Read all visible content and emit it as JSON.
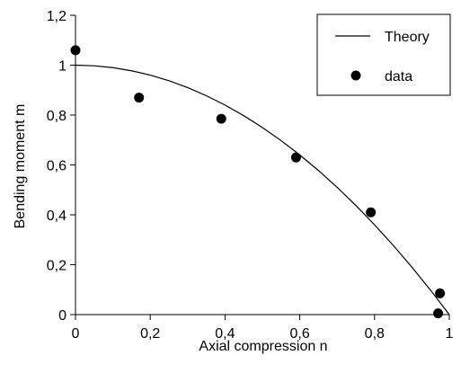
{
  "chart_data": {
    "type": "scatter",
    "xlabel": "Axial compression  n",
    "ylabel": "Bending moment  m",
    "xlim": [
      0,
      1
    ],
    "ylim": [
      0,
      1.2
    ],
    "x_ticks": [
      "0",
      "0,2",
      "0,4",
      "0,6",
      "0,8",
      "1"
    ],
    "x_tick_values": [
      0,
      0.2,
      0.4,
      0.6,
      0.8,
      1.0
    ],
    "y_ticks": [
      "0",
      "0,2",
      "0,4",
      "0,6",
      "0,8",
      "1",
      "1,2"
    ],
    "y_tick_values": [
      0,
      0.2,
      0.4,
      0.6,
      0.8,
      1.0,
      1.2
    ],
    "grid": false,
    "legend_position": "top-right",
    "series": [
      {
        "name": "Theory",
        "kind": "line",
        "color": "#000000",
        "formula": "m = 1 - n^2",
        "x": [
          0,
          0.05,
          0.1,
          0.15,
          0.2,
          0.25,
          0.3,
          0.35,
          0.4,
          0.45,
          0.5,
          0.55,
          0.6,
          0.65,
          0.7,
          0.75,
          0.8,
          0.85,
          0.9,
          0.95,
          1.0
        ],
        "y": [
          1.0,
          0.9975,
          0.99,
          0.9775,
          0.96,
          0.9375,
          0.91,
          0.8775,
          0.84,
          0.7975,
          0.75,
          0.6975,
          0.64,
          0.5775,
          0.51,
          0.4375,
          0.36,
          0.2775,
          0.19,
          0.0975,
          0.0
        ]
      },
      {
        "name": "data",
        "kind": "scatter",
        "color": "#000000",
        "x": [
          0.0,
          0.17,
          0.39,
          0.59,
          0.79,
          0.975,
          0.97
        ],
        "y": [
          1.06,
          0.87,
          0.785,
          0.63,
          0.41,
          0.085,
          0.005
        ]
      }
    ]
  }
}
